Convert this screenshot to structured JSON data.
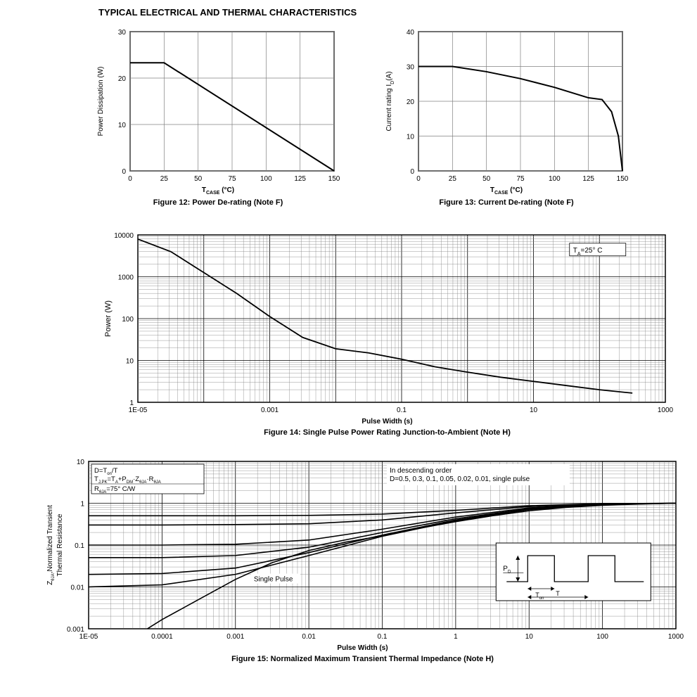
{
  "section_title": "TYPICAL ELECTRICAL AND THERMAL CHARACTERISTICS",
  "colors": {
    "line": "#000000",
    "grid": "#808080",
    "bg": "#ffffff",
    "text": "#000000"
  },
  "fig12": {
    "type": "line",
    "title": "Figure 12: Power De-rating (Note F)",
    "xlabel_html": "T<tspan baseline-shift='sub' font-size='7'>CASE</tspan> (°C)",
    "ylabel": "Power Dissipation (W)",
    "xlim": [
      0,
      150
    ],
    "ylim": [
      0,
      30
    ],
    "xticks": [
      0,
      25,
      50,
      75,
      100,
      125,
      150
    ],
    "yticks": [
      0,
      10,
      20,
      30
    ],
    "series": [
      {
        "x": [
          0,
          25,
          150
        ],
        "y": [
          23.3,
          23.3,
          0
        ]
      }
    ],
    "line_width": 2,
    "tick_fontsize": 10,
    "label_fontsize": 10
  },
  "fig13": {
    "type": "line",
    "title": "Figure 13: Current De-rating (Note F)",
    "xlabel_html": "T<tspan baseline-shift='sub' font-size='7'>CASE</tspan> (°C)",
    "ylabel_html": "Current rating I<tspan baseline-shift='sub' font-size='7'>D</tspan>(A)",
    "xlim": [
      0,
      150
    ],
    "ylim": [
      0,
      40
    ],
    "xticks": [
      0,
      25,
      50,
      75,
      100,
      125,
      150
    ],
    "yticks": [
      0,
      10,
      20,
      30,
      40
    ],
    "series": [
      {
        "x": [
          0,
          25,
          50,
          75,
          100,
          125,
          135,
          142,
          147,
          150
        ],
        "y": [
          30,
          30,
          28.5,
          26.5,
          24,
          21,
          20.5,
          17,
          10,
          0
        ]
      }
    ],
    "line_width": 2
  },
  "fig14": {
    "type": "loglog-line",
    "title": "Figure 14: Single Pulse Power Rating Junction-to-Ambient (Note H)",
    "xlabel": "Pulse Width (s)",
    "ylabel": "Power (W)",
    "annotation": "T_A=25° C",
    "x_log_min": -5,
    "x_log_max": 3,
    "y_log_min": 0,
    "y_log_max": 4,
    "xticks": [
      "1E-05",
      "0.001",
      "0.1",
      "10",
      "1000"
    ],
    "yticks": [
      "1",
      "10",
      "100",
      "1000",
      "10000"
    ],
    "series": [
      {
        "logx": [
          -5,
          -4.5,
          -4,
          -3.5,
          -3,
          -2.5,
          -2,
          -1.5,
          -1,
          -0.5,
          0,
          0.5,
          1,
          1.5,
          2,
          2.5
        ],
        "logy": [
          3.9,
          3.6,
          3.1,
          2.6,
          2.05,
          1.55,
          1.28,
          1.18,
          1.03,
          0.85,
          0.72,
          0.6,
          0.5,
          0.4,
          0.3,
          0.22
        ]
      }
    ]
  },
  "fig15": {
    "type": "loglog-multiline",
    "title": "Figure 15: Normalized Maximum Transient Thermal Impedance (Note H)",
    "xlabel": "Pulse Width (s)",
    "ylabel_html": "Z<tspan baseline-shift='sub' font-size='7'>θJA</tspan>,Normalized Transient\nThermal Resistance",
    "x_log_min": -5,
    "x_log_max": 3,
    "y_log_min": -3,
    "y_log_max": 1,
    "xticks": [
      "1E-05",
      "0.0001",
      "0.001",
      "0.01",
      "0.1",
      "1",
      "10",
      "100",
      "1000"
    ],
    "yticks": [
      "0.001",
      "0.01",
      "0.1",
      "1",
      "10"
    ],
    "note_block": [
      "D=T_on/T",
      "T_J,PK=T_A+P_DM·Z_θJA·R_θJA",
      "R_θJA=75° C/W"
    ],
    "order_note": [
      "In descending order",
      "D=0.5, 0.3, 0.1, 0.05, 0.02, 0.01, single pulse"
    ],
    "single_pulse_label": "Single Pulse",
    "series": [
      {
        "name": "D=0.5",
        "logx": [
          -5,
          -4,
          -3,
          -2,
          -1,
          0,
          1,
          2,
          3
        ],
        "logy": [
          -0.3,
          -0.3,
          -0.3,
          -0.29,
          -0.26,
          -0.17,
          -0.06,
          -0.01,
          0
        ]
      },
      {
        "name": "D=0.3",
        "logx": [
          -5,
          -4,
          -3,
          -2,
          -1,
          0,
          1,
          2,
          3
        ],
        "logy": [
          -0.52,
          -0.52,
          -0.51,
          -0.49,
          -0.4,
          -0.23,
          -0.08,
          -0.01,
          0
        ]
      },
      {
        "name": "D=0.1",
        "logx": [
          -5,
          -4,
          -3,
          -2,
          -1,
          0,
          1,
          2,
          3
        ],
        "logy": [
          -1.0,
          -1.0,
          -0.98,
          -0.88,
          -0.62,
          -0.33,
          -0.11,
          -0.02,
          0
        ]
      },
      {
        "name": "D=0.05",
        "logx": [
          -5,
          -4,
          -3,
          -2,
          -1,
          0,
          1,
          2,
          3
        ],
        "logy": [
          -1.3,
          -1.3,
          -1.25,
          -1.05,
          -0.7,
          -0.37,
          -0.13,
          -0.02,
          0
        ]
      },
      {
        "name": "D=0.02",
        "logx": [
          -5,
          -4,
          -3,
          -2,
          -1,
          0,
          1,
          2,
          3
        ],
        "logy": [
          -1.7,
          -1.68,
          -1.55,
          -1.18,
          -0.76,
          -0.4,
          -0.14,
          -0.03,
          0
        ]
      },
      {
        "name": "D=0.01",
        "logx": [
          -5,
          -4,
          -3,
          -2,
          -1,
          0,
          1,
          2,
          3
        ],
        "logy": [
          -2.0,
          -1.95,
          -1.7,
          -1.25,
          -0.79,
          -0.42,
          -0.15,
          -0.03,
          0
        ]
      },
      {
        "name": "single",
        "logx": [
          -4.2,
          -4,
          -3.5,
          -3,
          -2.5,
          -2,
          -1.5,
          -1,
          -0.5,
          0,
          0.5,
          1,
          1.5,
          2,
          2.5,
          3
        ],
        "logy": [
          -3,
          -2.78,
          -2.3,
          -1.82,
          -1.42,
          -1.13,
          -0.93,
          -0.78,
          -0.6,
          -0.44,
          -0.3,
          -0.18,
          -0.1,
          -0.05,
          -0.02,
          0
        ]
      }
    ],
    "pulse_diagram": {
      "labels": [
        "P_D",
        "T_on",
        "T"
      ]
    }
  }
}
